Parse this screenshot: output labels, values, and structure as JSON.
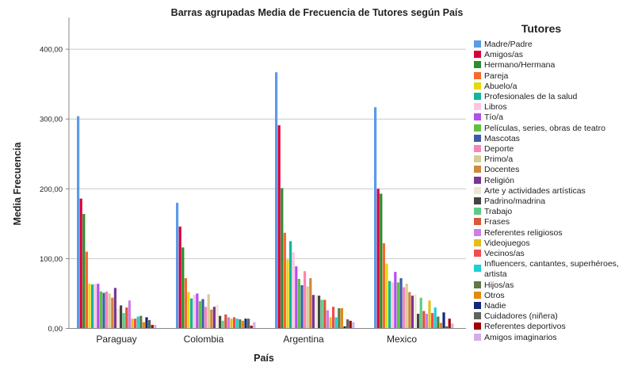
{
  "chart_data": {
    "type": "bar",
    "title": "Barras agrupadas Media de Frecuencia de Tutores según País",
    "xlabel": "País",
    "ylabel": "Media Frecuencia",
    "ylim": [
      0,
      445
    ],
    "yticks": [
      0,
      100,
      200,
      300,
      400
    ],
    "ytick_labels": [
      "0,00",
      "100,00",
      "200,00",
      "300,00",
      "400,00"
    ],
    "grid": "horizontal",
    "legend_title": "Tutores",
    "legend_position": "right",
    "categories": [
      "Paraguay",
      "Colombia",
      "Argentina",
      "Mexico"
    ],
    "series": [
      {
        "name": "Madre/Padre",
        "color": "#5B9BE8",
        "values": [
          304,
          180,
          367,
          317
        ]
      },
      {
        "name": "Amigos/as",
        "color": "#D8003A",
        "values": [
          186,
          146,
          291,
          200
        ]
      },
      {
        "name": "Hermano/Hermana",
        "color": "#2E8B2E",
        "values": [
          164,
          116,
          201,
          193
        ]
      },
      {
        "name": "Pareja",
        "color": "#F76A2E",
        "values": [
          110,
          72,
          137,
          122
        ]
      },
      {
        "name": "Abuelo/a",
        "color": "#E8D80E",
        "values": [
          64,
          52,
          99,
          93
        ]
      },
      {
        "name": "Profesionales de la salud",
        "color": "#12B5A0",
        "values": [
          63,
          43,
          125,
          68
        ]
      },
      {
        "name": "Libros",
        "color": "#FFC5E0",
        "values": [
          64,
          48,
          109,
          66
        ]
      },
      {
        "name": "Tío/a",
        "color": "#B34EF0",
        "values": [
          64,
          50,
          89,
          81
        ]
      },
      {
        "name": "Películas, series, obras de teatro",
        "color": "#5CC33E",
        "values": [
          53,
          39,
          71,
          66
        ]
      },
      {
        "name": "Mascotas",
        "color": "#3A5BA8",
        "values": [
          51,
          42,
          62,
          72
        ]
      },
      {
        "name": "Deporte",
        "color": "#F985B8",
        "values": [
          53,
          31,
          82,
          59
        ]
      },
      {
        "name": "Primo/a",
        "color": "#D8CC94",
        "values": [
          50,
          49,
          60,
          64
        ]
      },
      {
        "name": "Docentes",
        "color": "#D1873E",
        "values": [
          44,
          27,
          72,
          52
        ]
      },
      {
        "name": "Religión",
        "color": "#7B3594",
        "values": [
          58,
          31,
          48,
          47
        ]
      },
      {
        "name": "Arte y actividades artísticas",
        "color": "#EEE6D2",
        "values": [
          29,
          34,
          48,
          49
        ]
      },
      {
        "name": "Padrino/madrina",
        "color": "#444444",
        "values": [
          33,
          18,
          47,
          21
        ]
      },
      {
        "name": "Trabajo",
        "color": "#5FCB8A",
        "values": [
          22,
          11,
          41,
          44
        ]
      },
      {
        "name": "Frases",
        "color": "#D9573A",
        "values": [
          30,
          20,
          41,
          25
        ]
      },
      {
        "name": "Referentes religiosos",
        "color": "#D07DEB",
        "values": [
          40,
          16,
          26,
          21
        ]
      },
      {
        "name": "Videojuegos",
        "color": "#E6BE1A",
        "values": [
          14,
          14,
          16,
          40
        ]
      },
      {
        "name": "Vecinos/as",
        "color": "#F04D4D",
        "values": [
          14,
          16,
          31,
          22
        ]
      },
      {
        "name": "Influencers, cantantes, superhéroes, artista",
        "color": "#1DD0D3",
        "values": [
          17,
          14,
          16,
          30
        ]
      },
      {
        "name": "Hijos/as",
        "color": "#5E7A45",
        "values": [
          18,
          13,
          29,
          17
        ]
      },
      {
        "name": "Otros",
        "color": "#E38A0E",
        "values": [
          9,
          11,
          29,
          8
        ]
      },
      {
        "name": "Nadie",
        "color": "#12287A",
        "values": [
          16,
          14,
          3,
          23
        ]
      },
      {
        "name": "Cuidadores (niñera)",
        "color": "#5C645C",
        "values": [
          12,
          14,
          13,
          3
        ]
      },
      {
        "name": "Referentes deportivos",
        "color": "#A00000",
        "values": [
          5,
          4,
          11,
          14
        ]
      },
      {
        "name": "Amigos imaginarios",
        "color": "#D2AEE8",
        "values": [
          5,
          9,
          9,
          7
        ]
      }
    ]
  }
}
